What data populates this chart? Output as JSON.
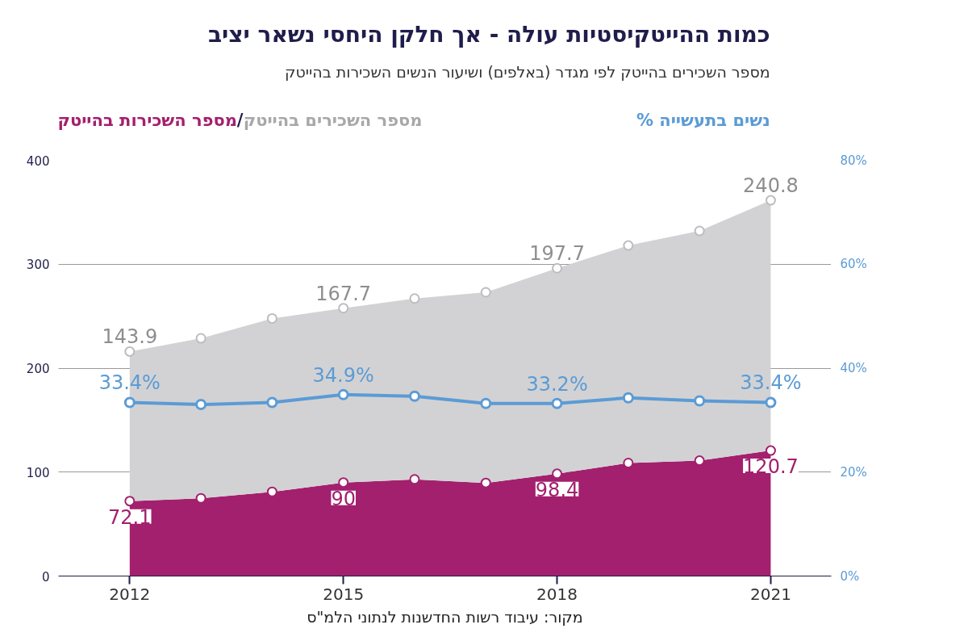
{
  "chart_data": {
    "type": "area",
    "stacked": true,
    "title": "כמות ההייטקיסטיות עולה - אך חלקן היחסי נשאר יציב",
    "subtitle": "מספר השכירים בהייטק לפי מגדר (באלפים) ושיעור הנשים השכירות בהייטק",
    "x": [
      2012,
      2013,
      2014,
      2015,
      2016,
      2017,
      2018,
      2019,
      2020,
      2021
    ],
    "series": [
      {
        "name": "מספר השכירות בהייטק",
        "color": "#a3206e",
        "values": [
          72.1,
          74.8,
          81,
          90,
          93,
          89.6,
          98.4,
          108.7,
          111,
          120.7
        ],
        "value_labels": [
          "72.1",
          null,
          null,
          "90",
          null,
          null,
          "98.4",
          null,
          null,
          "120.7"
        ]
      },
      {
        "name": "מספר השכירים בהייטק",
        "color": "#d2d2d4",
        "values": [
          143.9,
          153.9,
          166.8,
          167.7,
          174,
          183.4,
          197.7,
          209.3,
          221,
          240.8
        ],
        "value_labels": [
          "143.9",
          null,
          null,
          "167.7",
          null,
          null,
          "197.7",
          null,
          null,
          "240.8"
        ]
      },
      {
        "name": "% נשים בתעשייה",
        "type": "line",
        "axis": "y2",
        "color": "#5b9bd5",
        "values": [
          33.4,
          33.0,
          33.4,
          34.9,
          34.6,
          33.2,
          33.2,
          34.3,
          33.7,
          33.4
        ],
        "value_labels": [
          "33.4%",
          null,
          null,
          "34.9%",
          null,
          null,
          "33.2%",
          null,
          null,
          "33.4%"
        ]
      }
    ],
    "annotations": [
      "/",
      "מקור: עיבוד רשות החדשנות לנתוני הלמ\"ס"
    ],
    "marker": "circle",
    "line_style": "solid",
    "grid": "y",
    "xlim": [
      2011,
      2021.85
    ],
    "xticks": [
      2012,
      2015,
      2018,
      2021
    ],
    "ylim": [
      0,
      400
    ],
    "yticks": [
      0,
      100,
      200,
      300,
      400
    ],
    "y2lim": [
      0,
      80
    ],
    "y2ticks": [
      {
        "value": 0,
        "label": "0%"
      },
      {
        "value": 20,
        "label": "20%"
      },
      {
        "value": 40,
        "label": "40%"
      },
      {
        "value": 60,
        "label": "60%"
      },
      {
        "value": 80,
        "label": "80%"
      }
    ]
  }
}
